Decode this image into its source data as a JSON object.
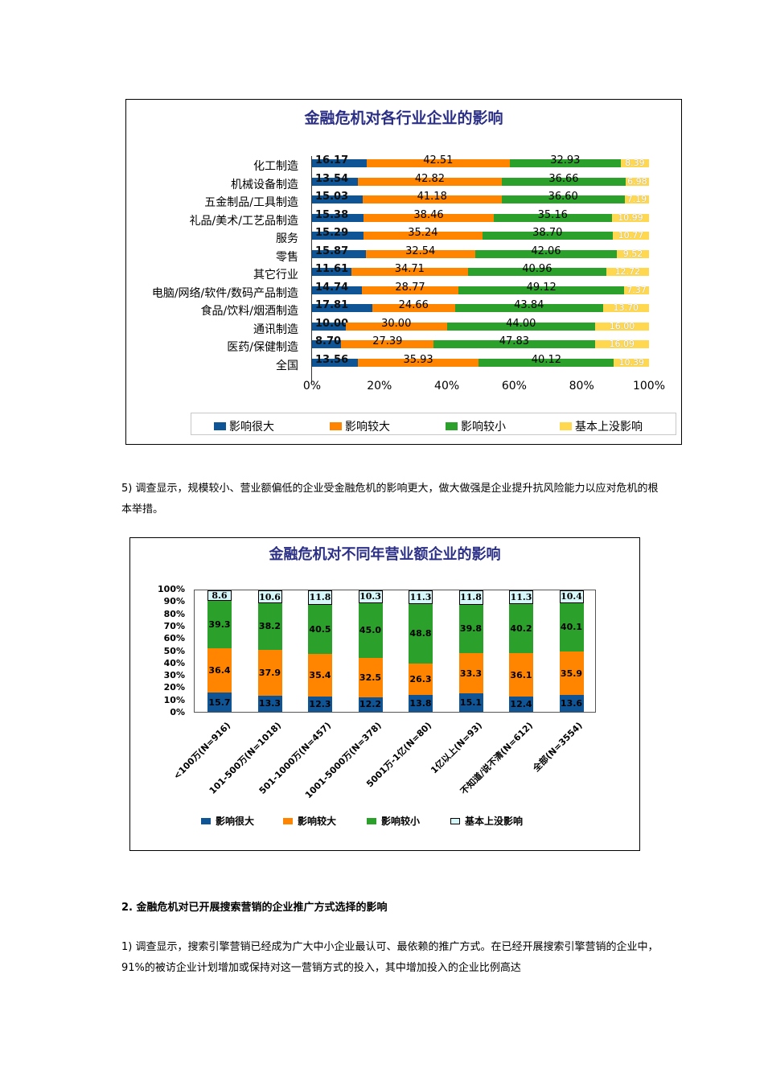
{
  "colors": {
    "very_large": "#0f5596",
    "larger": "#ff8400",
    "smaller": "#2ba02b",
    "none_chart1": "#ffd850",
    "none_chart2": "#d6f7fa",
    "title": "#2b2f86"
  },
  "chart1": {
    "title": "金融危机对各行业企业的影响",
    "legend": [
      "影响很大",
      "影响较大",
      "影响较小",
      "基本上没影响"
    ],
    "x_ticks": [
      "0%",
      "20%",
      "40%",
      "60%",
      "80%",
      "100%"
    ],
    "rows": [
      {
        "label": "化工制造",
        "values": [
          "16.17",
          "42.51",
          "32.93",
          "8.39"
        ]
      },
      {
        "label": "机械设备制造",
        "values": [
          "13.54",
          "42.82",
          "36.66",
          "6.98"
        ]
      },
      {
        "label": "五金制品/工具制造",
        "values": [
          "15.03",
          "41.18",
          "36.60",
          "7.19"
        ]
      },
      {
        "label": "礼品/美术/工艺品制造",
        "values": [
          "15.38",
          "38.46",
          "35.16",
          "10.99"
        ]
      },
      {
        "label": "服务",
        "values": [
          "15.29",
          "35.24",
          "38.70",
          "10.77"
        ]
      },
      {
        "label": "零售",
        "values": [
          "15.87",
          "32.54",
          "42.06",
          "9.52"
        ]
      },
      {
        "label": "其它行业",
        "values": [
          "11.61",
          "34.71",
          "40.96",
          "12.72"
        ]
      },
      {
        "label": "电脑/网络/软件/数码产品制造",
        "values": [
          "14.74",
          "28.77",
          "49.12",
          "7.37"
        ]
      },
      {
        "label": "食品/饮料/烟酒制造",
        "values": [
          "17.81",
          "24.66",
          "43.84",
          "13.70"
        ]
      },
      {
        "label": "通讯制造",
        "values": [
          "10.00",
          "30.00",
          "44.00",
          "16.00"
        ]
      },
      {
        "label": "医药/保健制造",
        "values": [
          "8.70",
          "27.39",
          "47.83",
          "16.09"
        ]
      },
      {
        "label": "全国",
        "values": [
          "13.56",
          "35.93",
          "40.12",
          "10.39"
        ]
      }
    ]
  },
  "paragraphs": {
    "p5": "5) 调查显示，规模较小、营业额偏低的企业受金融危机的影响更大，做大做强是企业提升抗风险能力以应对危机的根本举措。",
    "section2": "2.  金融危机对已开展搜索营销的企业推广方式选择的影响",
    "p1": "1) 调查显示，搜索引擎营销已经成为广大中小企业最认可、最依赖的推广方式。在已经开展搜索引擎营销的企业中，91%的被访企业计划增加或保持对这一营销方式的投入，其中增加投入的企业比例高达"
  },
  "chart2": {
    "title": "金融危机对不同年营业额企业的影响",
    "legend": [
      "影响很大",
      "影响较大",
      "影响较小",
      "基本上没影响"
    ],
    "y_ticks": [
      "100%",
      "90%",
      "80%",
      "70%",
      "60%",
      "50%",
      "40%",
      "30%",
      "20%",
      "10%",
      "0%"
    ],
    "bars": [
      {
        "label": "<100万(N=916)",
        "values": [
          "15.7",
          "36.4",
          "39.3",
          "8.6"
        ]
      },
      {
        "label": "101-500万(N=1018)",
        "values": [
          "13.3",
          "37.9",
          "38.2",
          "10.6"
        ]
      },
      {
        "label": "501-1000万(N=457)",
        "values": [
          "12.3",
          "35.4",
          "40.5",
          "11.8"
        ]
      },
      {
        "label": "1001-5000万(N=378)",
        "values": [
          "12.2",
          "32.5",
          "45.0",
          "10.3"
        ]
      },
      {
        "label": "5001万-1亿(N=80)",
        "values": [
          "13.8",
          "26.3",
          "48.8",
          "11.3"
        ]
      },
      {
        "label": "1亿以上(N=93)",
        "values": [
          "15.1",
          "33.3",
          "39.8",
          "11.8"
        ]
      },
      {
        "label": "不知道/说不清(N=612)",
        "values": [
          "12.4",
          "36.1",
          "40.2",
          "11.3"
        ]
      },
      {
        "label": "全部(N=3554)",
        "values": [
          "13.6",
          "35.9",
          "40.1",
          "10.4"
        ]
      }
    ]
  },
  "chart_data": [
    {
      "type": "bar",
      "orientation": "horizontal",
      "stacked": true,
      "title": "金融危机对各行业企业的影响",
      "xlabel": "",
      "ylabel": "",
      "xlim": [
        0,
        100
      ],
      "x_tick_labels": [
        "0%",
        "20%",
        "40%",
        "60%",
        "80%",
        "100%"
      ],
      "legend_position": "bottom",
      "categories": [
        "化工制造",
        "机械设备制造",
        "五金制品/工具制造",
        "礼品/美术/工艺品制造",
        "服务",
        "零售",
        "其它行业",
        "电脑/网络/软件/数码产品制造",
        "食品/饮料/烟酒制造",
        "通讯制造",
        "医药/保健制造",
        "全国"
      ],
      "series": [
        {
          "name": "影响很大",
          "values": [
            16.17,
            13.54,
            15.03,
            15.38,
            15.29,
            15.87,
            11.61,
            14.74,
            17.81,
            10.0,
            8.7,
            13.56
          ]
        },
        {
          "name": "影响较大",
          "values": [
            42.51,
            42.82,
            41.18,
            38.46,
            35.24,
            32.54,
            34.71,
            28.77,
            24.66,
            30.0,
            27.39,
            35.93
          ]
        },
        {
          "name": "影响较小",
          "values": [
            32.93,
            36.66,
            36.6,
            35.16,
            38.7,
            42.06,
            40.96,
            49.12,
            43.84,
            44.0,
            47.83,
            40.12
          ]
        },
        {
          "name": "基本上没影响",
          "values": [
            8.39,
            6.98,
            7.19,
            10.99,
            10.77,
            9.52,
            12.72,
            7.37,
            13.7,
            16.0,
            16.09,
            10.39
          ]
        }
      ]
    },
    {
      "type": "bar",
      "orientation": "vertical",
      "stacked": true,
      "title": "金融危机对不同年营业额企业的影响",
      "xlabel": "",
      "ylabel": "",
      "ylim": [
        0,
        100
      ],
      "y_tick_labels": [
        "0%",
        "10%",
        "20%",
        "30%",
        "40%",
        "50%",
        "60%",
        "70%",
        "80%",
        "90%",
        "100%"
      ],
      "legend_position": "bottom",
      "categories": [
        "<100万(N=916)",
        "101-500万(N=1018)",
        "501-1000万(N=457)",
        "1001-5000万(N=378)",
        "5001万-1亿(N=80)",
        "1亿以上(N=93)",
        "不知道/说不清(N=612)",
        "全部(N=3554)"
      ],
      "series": [
        {
          "name": "影响很大",
          "values": [
            15.7,
            13.3,
            12.3,
            12.2,
            13.8,
            15.1,
            12.4,
            13.6
          ]
        },
        {
          "name": "影响较大",
          "values": [
            36.4,
            37.9,
            35.4,
            32.5,
            26.3,
            33.3,
            36.1,
            35.9
          ]
        },
        {
          "name": "影响较小",
          "values": [
            39.3,
            38.2,
            40.5,
            45.0,
            48.8,
            39.8,
            40.2,
            40.1
          ]
        },
        {
          "name": "基本上没影响",
          "values": [
            8.6,
            10.6,
            11.8,
            10.3,
            11.3,
            11.8,
            11.3,
            10.4
          ]
        }
      ]
    }
  ]
}
